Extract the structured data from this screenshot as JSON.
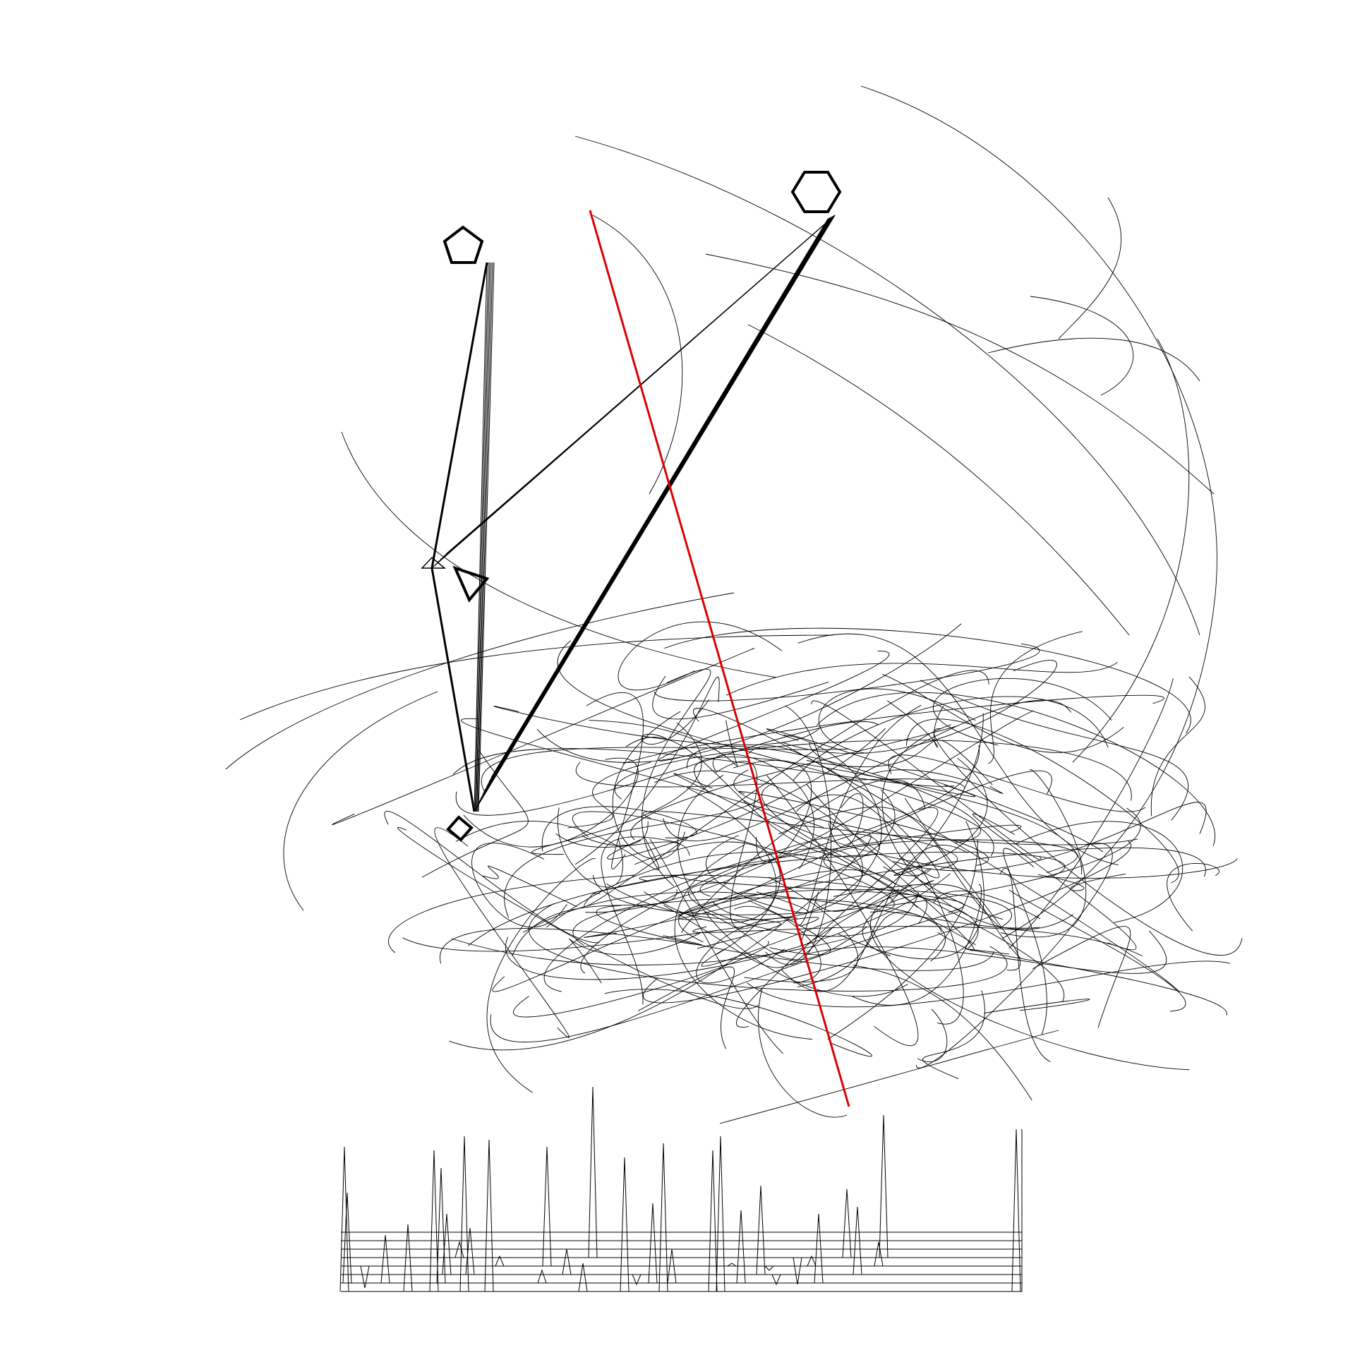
{
  "artwork": {
    "background_color": "#ffffff",
    "stroke_color": "#000000",
    "accent_color": "#dd0000",
    "markers": [
      {
        "shape": "hexagon"
      },
      {
        "shape": "pentagon"
      },
      {
        "shape": "triangle"
      },
      {
        "shape": "diamond"
      }
    ],
    "has_red_diagonal": true,
    "spike_baselines": 8
  }
}
